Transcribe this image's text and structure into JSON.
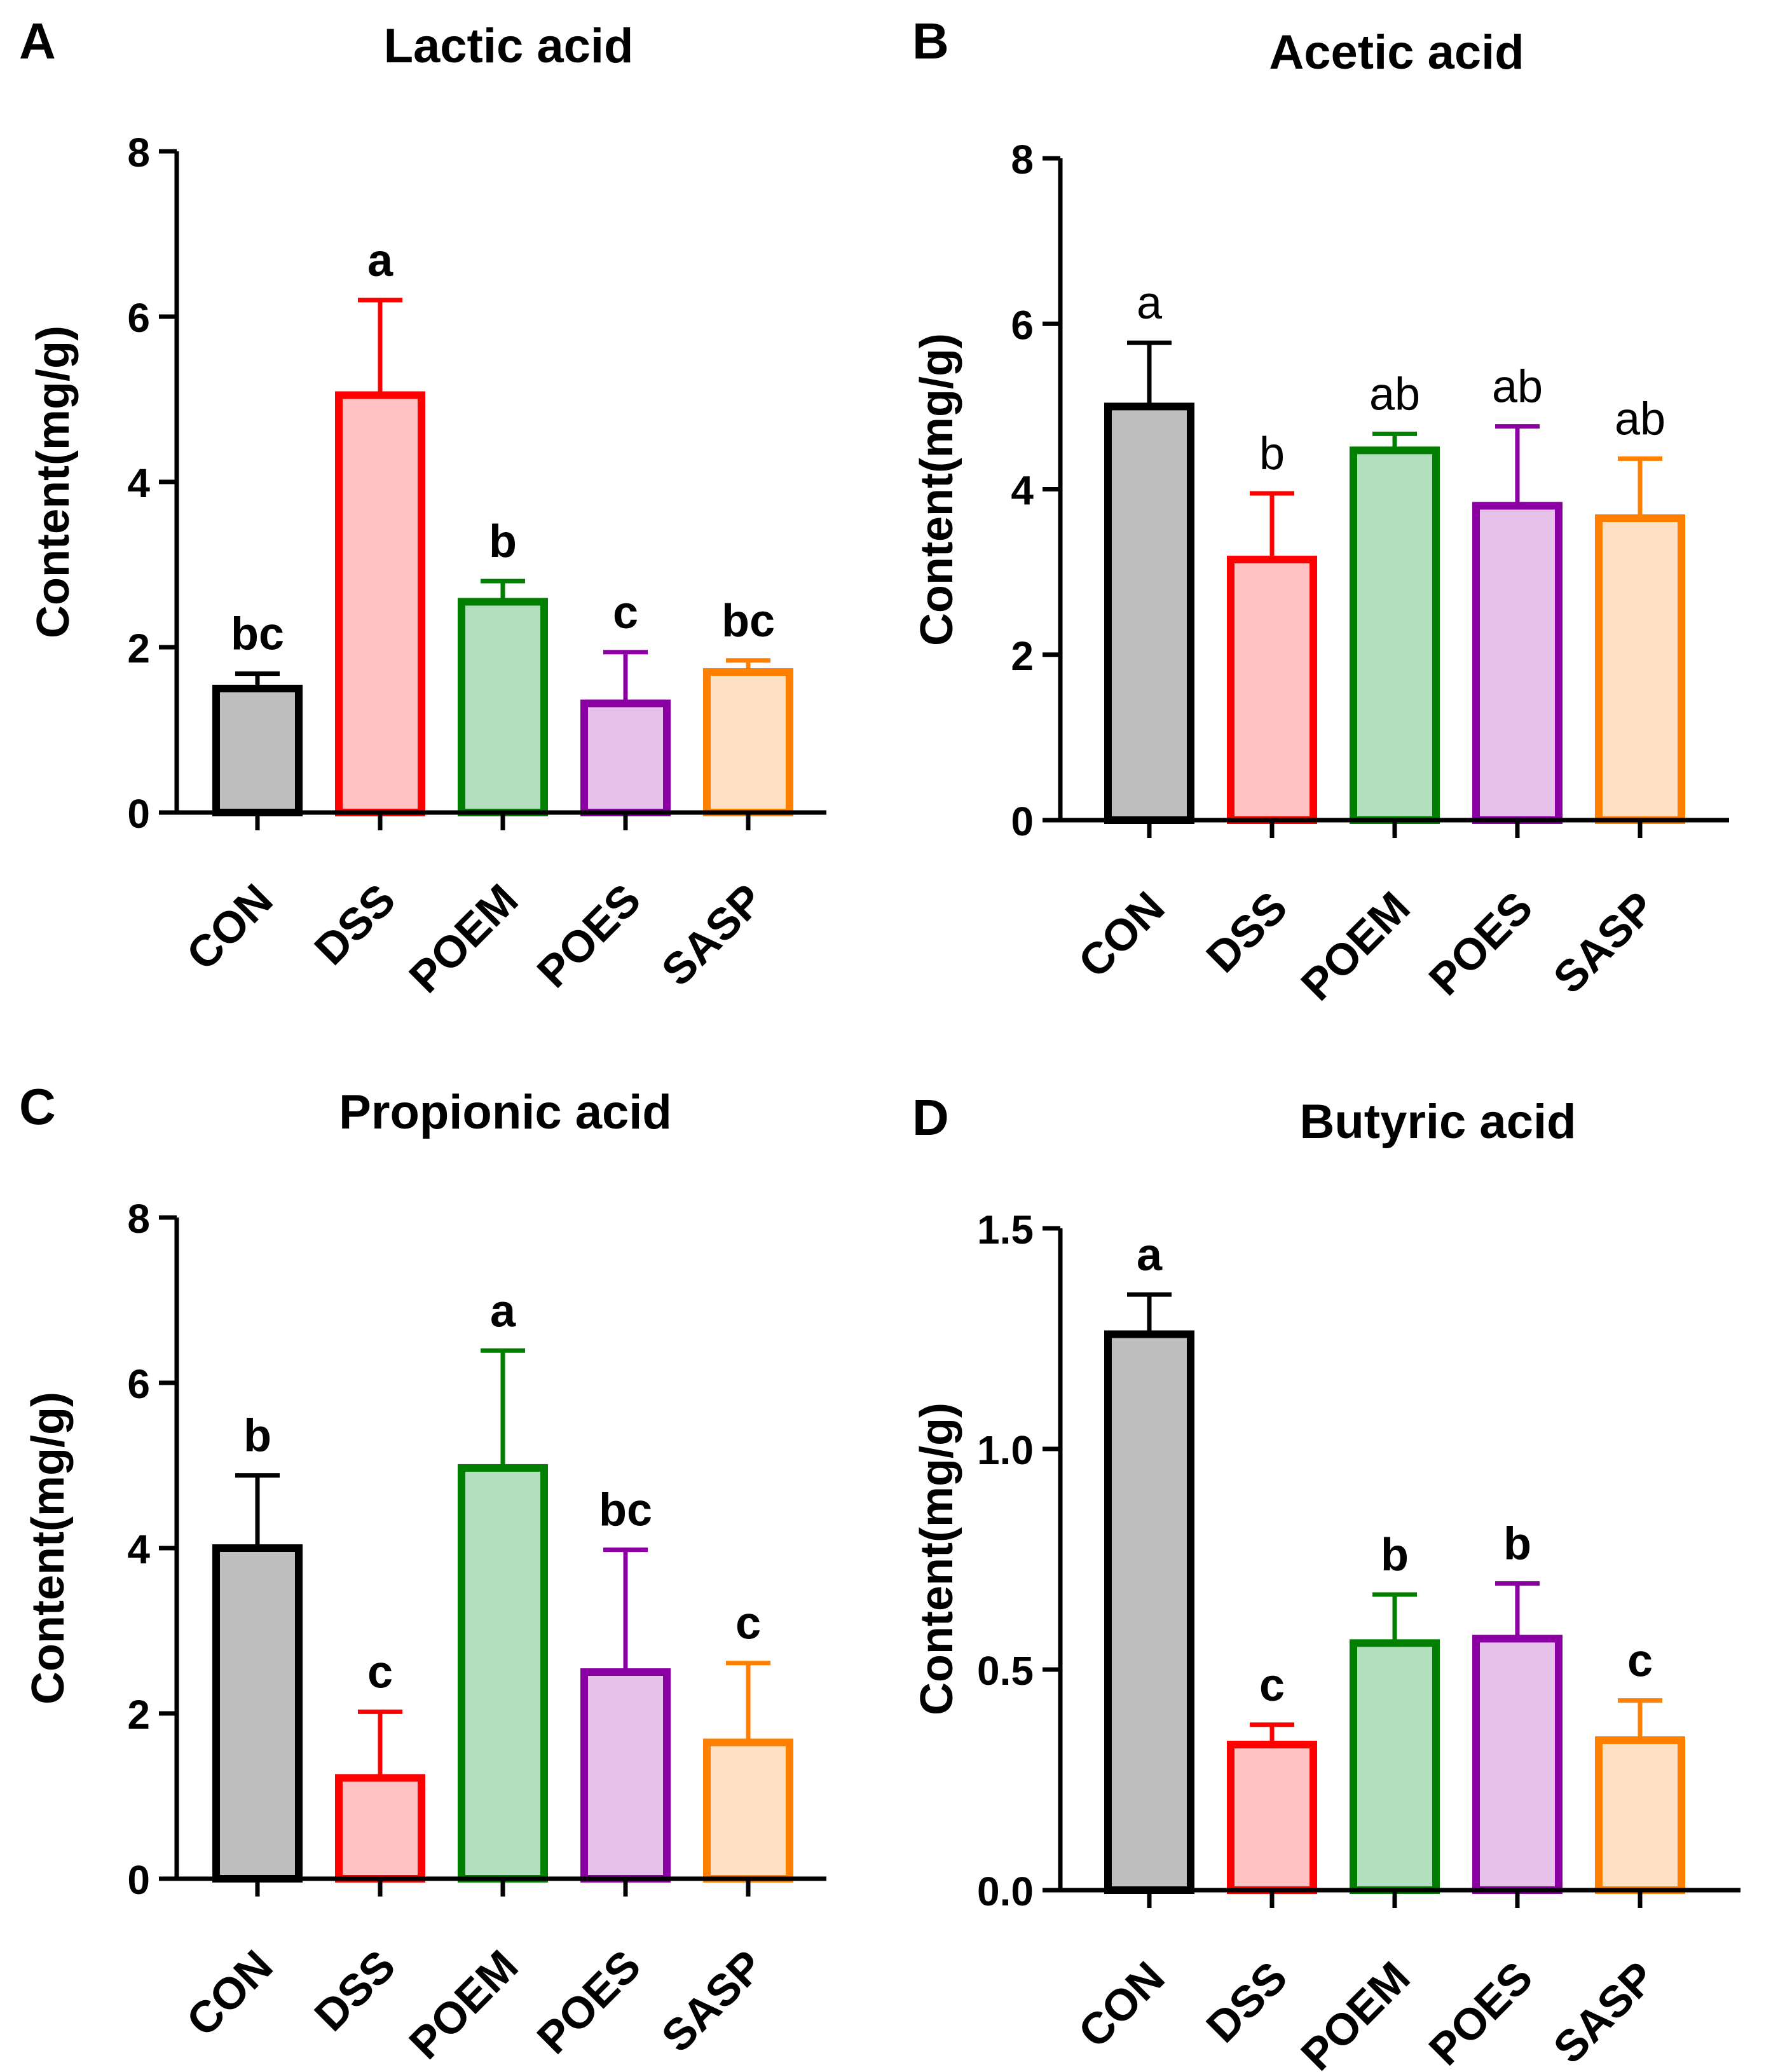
{
  "chart_data": [
    {
      "panel_letter": "A",
      "type": "bar",
      "title": "Lactic acid",
      "ylabel": "Content(mg/g)",
      "ylim": [
        0,
        8
      ],
      "yticks": [
        0,
        2,
        4,
        6,
        8
      ],
      "ytick_labels": [
        "0",
        "2",
        "4",
        "6",
        "8"
      ],
      "categories": [
        "CON",
        "DSS",
        "POEM",
        "POES",
        "SASP"
      ],
      "values": [
        1.5,
        5.05,
        2.55,
        1.32,
        1.7
      ],
      "errors": [
        0.18,
        1.15,
        0.25,
        0.62,
        0.14
      ],
      "sig_labels": [
        "bc",
        "a",
        "b",
        "c",
        "bc"
      ]
    },
    {
      "panel_letter": "B",
      "type": "bar",
      "title": "Acetic acid",
      "ylabel": "Content(mg/g)",
      "ylim": [
        0,
        8
      ],
      "yticks": [
        0,
        2,
        4,
        6,
        8
      ],
      "ytick_labels": [
        "0",
        "2",
        "4",
        "6",
        "8"
      ],
      "categories": [
        "CON",
        "DSS",
        "POEM",
        "POES",
        "SASP"
      ],
      "values": [
        5.0,
        3.15,
        4.47,
        3.8,
        3.65
      ],
      "errors": [
        0.77,
        0.8,
        0.2,
        0.96,
        0.72
      ],
      "sig_labels": [
        "a",
        "b",
        "ab",
        "ab",
        "ab"
      ]
    },
    {
      "panel_letter": "C",
      "type": "bar",
      "title": "Propionic acid",
      "ylabel": "Content(mg/g)",
      "ylim": [
        0,
        8
      ],
      "yticks": [
        0,
        2,
        4,
        6,
        8
      ],
      "ytick_labels": [
        "0",
        "2",
        "4",
        "6",
        "8"
      ],
      "categories": [
        "CON",
        "DSS",
        "POEM",
        "POES",
        "SASP"
      ],
      "values": [
        4.0,
        1.22,
        4.97,
        2.5,
        1.65
      ],
      "errors": [
        0.88,
        0.8,
        1.42,
        1.48,
        0.96
      ],
      "sig_labels": [
        "b",
        "c",
        "a",
        "bc",
        "c"
      ]
    },
    {
      "panel_letter": "D",
      "type": "bar",
      "title": "Butyric acid",
      "ylabel": "Content(mg/g)",
      "ylim": [
        0,
        1.5
      ],
      "yticks": [
        0,
        0.5,
        1.0,
        1.5
      ],
      "ytick_labels": [
        "0.0",
        "0.5",
        "1.0",
        "1.5"
      ],
      "categories": [
        "CON",
        "DSS",
        "POEM",
        "POES",
        "SASP"
      ],
      "values": [
        1.26,
        0.33,
        0.56,
        0.57,
        0.34
      ],
      "errors": [
        0.09,
        0.045,
        0.11,
        0.125,
        0.09
      ],
      "sig_labels": [
        "a",
        "c",
        "b",
        "b",
        "c"
      ]
    }
  ],
  "colors": {
    "edges": [
      "#000000",
      "#ff0000",
      "#007f00",
      "#8b00a3",
      "#ff8000"
    ],
    "fills": [
      "#bebebe",
      "#ffc1c1",
      "#b2e0bf",
      "#e6c2ea",
      "#ffe0c2"
    ]
  }
}
